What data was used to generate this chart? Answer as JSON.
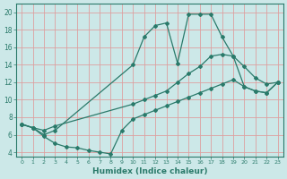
{
  "xlabel": "Humidex (Indice chaleur)",
  "bg_color": "#cce8e8",
  "grid_color": "#dda0a0",
  "line_color": "#2a7a6a",
  "xlim": [
    -0.5,
    23.5
  ],
  "ylim": [
    3.5,
    21
  ],
  "yticks": [
    4,
    6,
    8,
    10,
    12,
    14,
    16,
    18,
    20
  ],
  "xticks": [
    0,
    1,
    2,
    3,
    4,
    5,
    6,
    7,
    8,
    9,
    10,
    11,
    12,
    13,
    14,
    15,
    16,
    17,
    18,
    19,
    20,
    21,
    22,
    23
  ],
  "line1_x": [
    0,
    1,
    2,
    3,
    10,
    11,
    12,
    13,
    14,
    15,
    16,
    17,
    18,
    19,
    20,
    21,
    22,
    23
  ],
  "line1_y": [
    7.2,
    6.8,
    6.0,
    6.5,
    14.0,
    17.2,
    18.5,
    18.8,
    14.2,
    19.8,
    19.8,
    19.8,
    17.2,
    15.0,
    13.8,
    12.5,
    11.8,
    12.0
  ],
  "line2_x": [
    0,
    1,
    2,
    3,
    10,
    11,
    12,
    13,
    14,
    15,
    16,
    17,
    18,
    19,
    20,
    21,
    22,
    23
  ],
  "line2_y": [
    7.2,
    6.8,
    6.5,
    7.0,
    9.5,
    10.0,
    10.5,
    11.0,
    12.0,
    13.0,
    13.8,
    15.0,
    15.2,
    15.0,
    11.5,
    11.0,
    10.8,
    12.0
  ],
  "line3_x": [
    0,
    1,
    2,
    3,
    4,
    5,
    6,
    7,
    8,
    9,
    10,
    11,
    12,
    13,
    14,
    15,
    16,
    17,
    18,
    19,
    20,
    21,
    22,
    23
  ],
  "line3_y": [
    7.2,
    6.8,
    5.8,
    5.0,
    4.6,
    4.5,
    4.2,
    4.0,
    3.8,
    6.5,
    7.8,
    8.3,
    8.8,
    9.3,
    9.8,
    10.3,
    10.8,
    11.3,
    11.8,
    12.3,
    11.5,
    11.0,
    10.8,
    12.0
  ]
}
